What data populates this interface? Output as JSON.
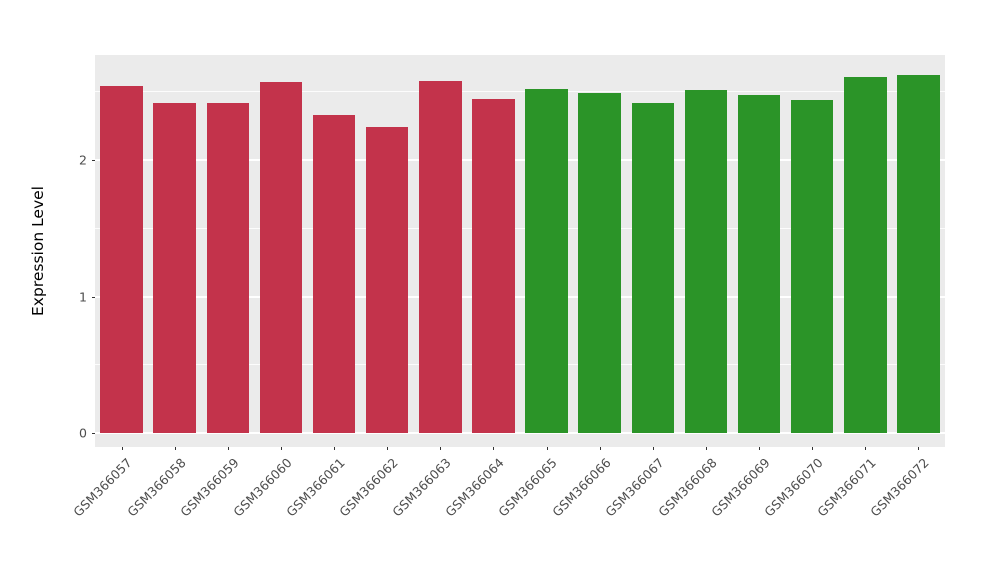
{
  "chart_data": {
    "type": "bar",
    "title": "",
    "xlabel": "",
    "ylabel": "Expression Level",
    "categories": [
      "GSM366057",
      "GSM366058",
      "GSM366059",
      "GSM366060",
      "GSM366061",
      "GSM366062",
      "GSM366063",
      "GSM366064",
      "GSM366065",
      "GSM366066",
      "GSM366067",
      "GSM366068",
      "GSM366069",
      "GSM366070",
      "GSM366071",
      "GSM366072"
    ],
    "values": [
      2.54,
      2.42,
      2.42,
      2.57,
      2.33,
      2.24,
      2.58,
      2.45,
      2.52,
      2.49,
      2.42,
      2.51,
      2.48,
      2.44,
      2.61,
      2.62
    ],
    "groups": [
      "red",
      "red",
      "red",
      "red",
      "red",
      "red",
      "red",
      "red",
      "green",
      "green",
      "green",
      "green",
      "green",
      "green",
      "green",
      "green"
    ],
    "colors": {
      "red": "#C3334B",
      "green": "#2B9428"
    },
    "ylim": [
      -0.103,
      2.77
    ],
    "yticks": [
      0,
      1,
      2
    ],
    "yticks_minor": [
      0.5,
      1.5,
      2.5
    ],
    "grid": true,
    "legend": "none",
    "panel_bg": "#EBEBEB",
    "grid_color": "#FFFFFF",
    "bar_width_fraction": 0.8
  }
}
